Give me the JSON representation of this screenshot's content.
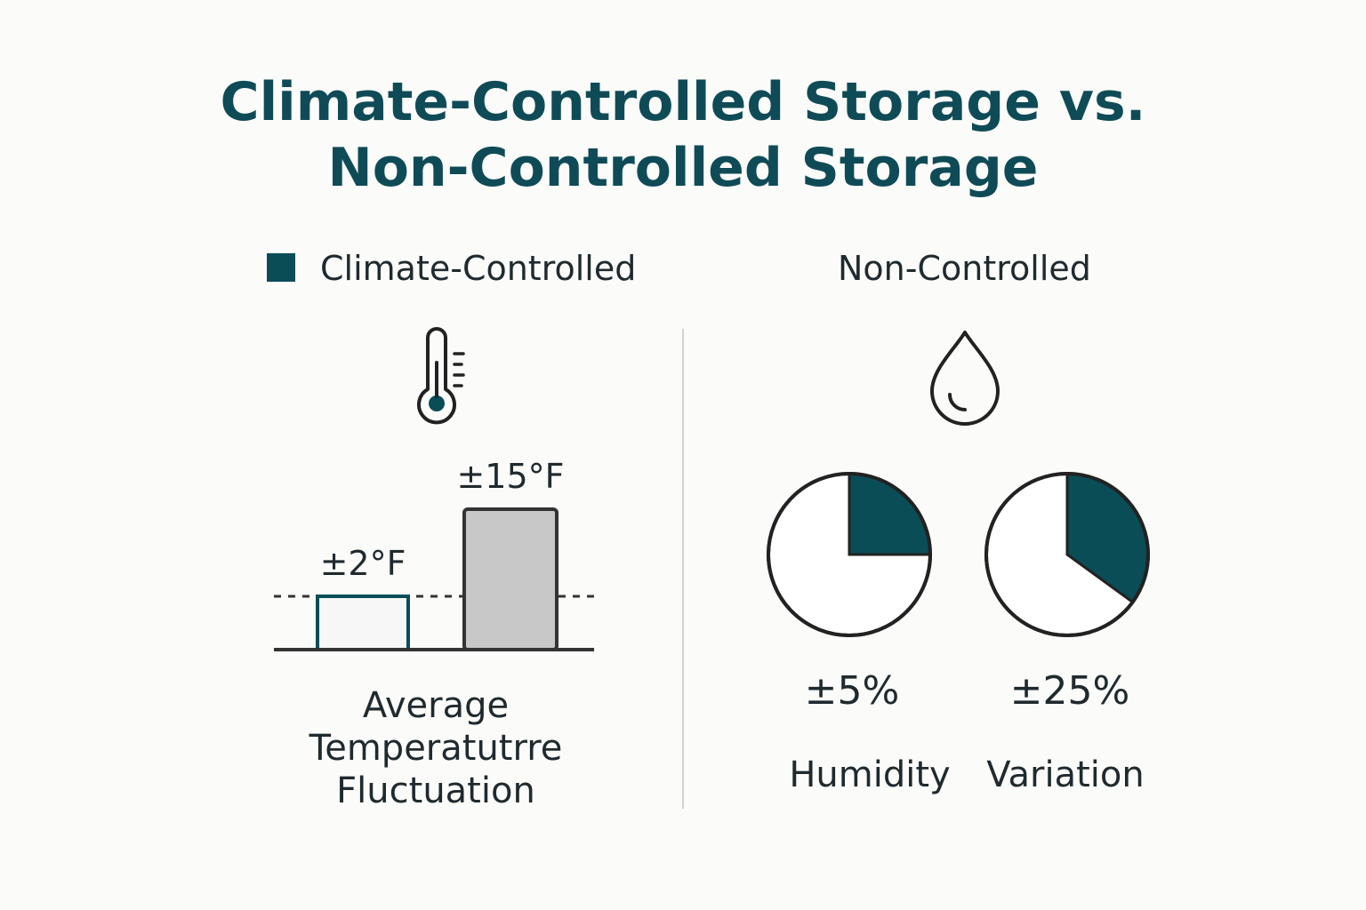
{
  "title": {
    "line1": "Climate-Controlled Storage vs.",
    "line2": "Non-Controlled Storage"
  },
  "legend": {
    "left_label": "Climate-Controlled",
    "right_label": "Non-Controlled"
  },
  "icons": {
    "left": "thermometer-icon",
    "right": "water-drop-icon"
  },
  "colors": {
    "accent": "#0a4d57",
    "title": "#0f4b57",
    "bar_controlled_fill": "#f6f7f6",
    "bar_noncontrolled_fill": "#c8c8c8",
    "text": "#1f2a2e"
  },
  "chart_data": [
    {
      "type": "bar",
      "title": "Average Temperatutrre Fluctuation",
      "caption_lines": [
        "Average",
        "Temperatutrre",
        "Fluctuation"
      ],
      "categories": [
        "Climate-Controlled",
        "Non-Controlled"
      ],
      "values": [
        2,
        15
      ],
      "value_labels": [
        "±2°F",
        "±15°F"
      ],
      "unit": "°F",
      "reference_line": "dashed at climate-controlled level",
      "ylim": [
        0,
        17
      ]
    },
    {
      "type": "pie",
      "title": "Humidity Variation",
      "pies": [
        {
          "label": "Humidity",
          "value": 5,
          "value_label": "±5%",
          "highlight_fraction": 0.25
        },
        {
          "label": "Variation",
          "value": 25,
          "value_label": "±25%",
          "highlight_fraction": 0.35
        }
      ]
    }
  ]
}
